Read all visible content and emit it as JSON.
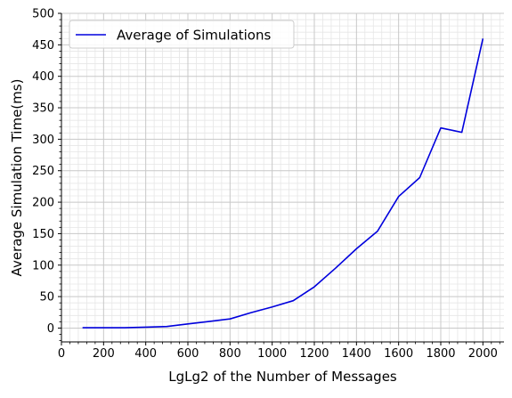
{
  "chart_data": {
    "type": "line",
    "xlabel": "LgLg2 of the Number of Messages",
    "ylabel": "Average Simulation Time(ms)",
    "xlim": [
      0,
      2100
    ],
    "ylim": [
      -22,
      500
    ],
    "x_ticks": [
      0,
      200,
      400,
      600,
      800,
      1000,
      1200,
      1400,
      1600,
      1800,
      2000
    ],
    "y_ticks": [
      0,
      50,
      100,
      150,
      200,
      250,
      300,
      350,
      400,
      450,
      500
    ],
    "grid": true,
    "minor_grid": true,
    "legend_position": "top-left",
    "series": [
      {
        "name": "Average of Simulations",
        "color": "#0000dd",
        "x": [
          100,
          200,
          300,
          400,
          500,
          600,
          700,
          800,
          900,
          1000,
          1100,
          1200,
          1300,
          1400,
          1500,
          1600,
          1700,
          1800,
          1900,
          2000
        ],
        "y": [
          0.5,
          0.5,
          0.5,
          1.5,
          2.5,
          6.5,
          10.5,
          14.5,
          24.5,
          33.5,
          43.5,
          65.5,
          95,
          126,
          154,
          209,
          239,
          318,
          311,
          460
        ]
      }
    ]
  }
}
